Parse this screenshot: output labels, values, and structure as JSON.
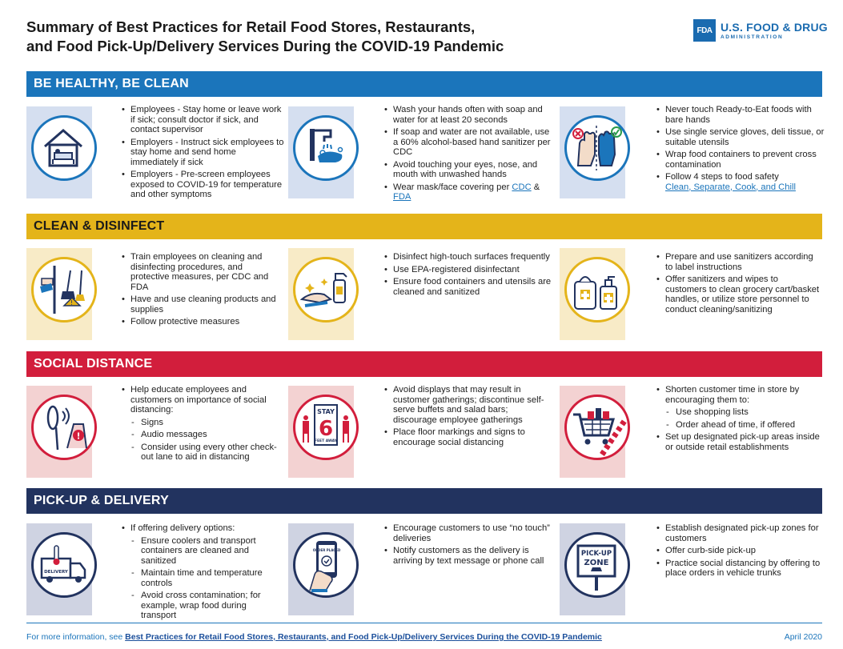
{
  "title": {
    "line1": "Summary of Best Practices for Retail Food Stores, Restaurants,",
    "line2": "and Food Pick-Up/Delivery Services During the COVID-19 Pandemic"
  },
  "logo": {
    "mark": "FDA",
    "name": "U.S. FOOD & DRUG",
    "sub": "ADMINISTRATION"
  },
  "sections": {
    "healthy": {
      "heading": "BE HEALTHY, BE CLEAN",
      "col1": [
        "Employees - Stay home or leave work if sick; consult doctor if sick, and contact supervisor",
        "Employers - Instruct sick employees to stay home and send home immediately if sick",
        "Employers - Pre-screen employees exposed to COVID-19 for temperature and other symptoms"
      ],
      "col2": [
        "Wash your hands often with soap and water for at least 20 seconds",
        "If soap and water are not available, use a 60% alcohol-based hand sanitizer per CDC",
        "Avoid touching your eyes, nose, and mouth with unwashed hands",
        "Wear mask/face covering per"
      ],
      "col2_link1": "CDC",
      "col2_amp": " & ",
      "col2_link2": "FDA",
      "col3": [
        "Never touch Ready-to-Eat foods with bare hands",
        "Use single service gloves, deli tissue, or suitable utensils",
        "Wrap food containers to prevent cross contamination",
        "Follow 4 steps to food safety"
      ],
      "col3_link": "Clean, Separate, Cook, and Chill"
    },
    "disinfect": {
      "heading": "CLEAN & DISINFECT",
      "col1": [
        "Train employees on cleaning and disinfecting procedures, and protective measures, per CDC and FDA",
        "Have and use cleaning products and supplies",
        "Follow protective measures"
      ],
      "col2": [
        "Disinfect high-touch surfaces frequently",
        "Use EPA-registered disinfectant",
        "Ensure food containers and utensils are cleaned and sanitized"
      ],
      "col3": [
        "Prepare and use sanitizers according to label instructions",
        "Offer sanitizers and wipes to customers to clean grocery cart/basket handles, or utilize store personnel to conduct cleaning/sanitizing"
      ]
    },
    "distance": {
      "heading": "SOCIAL DISTANCE",
      "col1_intro": "Help educate employees and customers on importance of social distancing:",
      "col1_sub": [
        "Signs",
        "Audio messages",
        "Consider using every other check-out lane to aid in distancing"
      ],
      "col2": [
        "Avoid displays that may result in customer gatherings; discontinue self-serve buffets and salad bars; discourage employee gatherings",
        "Place floor markings and signs to encourage social distancing"
      ],
      "col3_intro": "Shorten customer time in store by encouraging them to:",
      "col3_sub": [
        "Use shopping lists",
        "Order ahead of time, if offered"
      ],
      "col3_last": "Set up designated pick-up areas inside or outside retail establishments",
      "stay_sign": {
        "top": "STAY",
        "num": "6",
        "bottom": "FEET AWAY"
      }
    },
    "pickup": {
      "heading": "PICK-UP & DELIVERY",
      "col1_intro": "If offering delivery options:",
      "col1_sub": [
        "Ensure coolers and transport containers are cleaned and sanitized",
        "Maintain time and temperature controls",
        "Avoid cross contamination; for example, wrap food during transport"
      ],
      "col2": [
        "Encourage customers to use “no touch” deliveries",
        "Notify customers as the delivery is arriving by text message or phone call"
      ],
      "col3": [
        "Establish designated pick-up zones for customers",
        "Offer curb-side pick-up",
        "Practice social distancing by offering to place orders in vehicle trunks"
      ],
      "truck_label": "DELIVERY",
      "phone_label": "ORDER PLACED",
      "zone_sign": {
        "line1": "PICK-UP",
        "line2": "ZONE"
      }
    }
  },
  "footer": {
    "prefix": "For more information, see ",
    "link": "Best Practices for Retail Food Stores, Restaurants, and Food Pick-Up/Delivery Services During the COVID-19 Pandemic",
    "date": "April 2020"
  },
  "colors": {
    "blue": "#1b75bb",
    "yellow": "#e4b41a",
    "red": "#d21e3c",
    "navy": "#22335f"
  },
  "icons": [
    "house-sick-icon",
    "handwash-icon",
    "gloves-icon",
    "cleaning-icon",
    "spray-wipe-icon",
    "sanitizer-wipes-icon",
    "audio-sign-icon",
    "stay-6-feet-icon",
    "shopping-cart-icon",
    "delivery-truck-icon",
    "phone-order-icon",
    "pickup-zone-icon"
  ]
}
